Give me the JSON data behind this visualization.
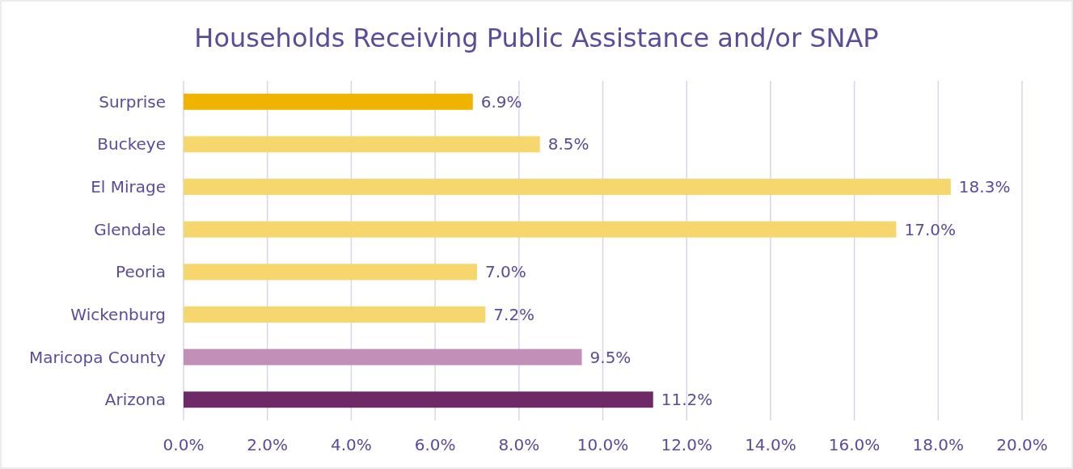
{
  "chart_data": {
    "type": "bar",
    "orientation": "horizontal",
    "title": "Households Receiving Public Assistance and/or SNAP",
    "categories": [
      "Surprise",
      "Buckeye",
      "El Mirage",
      "Glendale",
      "Peoria",
      "Wickenburg",
      "Maricopa County",
      "Arizona"
    ],
    "values": [
      6.9,
      8.5,
      18.3,
      17.0,
      7.0,
      7.2,
      9.5,
      11.2
    ],
    "colors": [
      "#f0b400",
      "#f5d76e",
      "#f5d76e",
      "#f5d76e",
      "#f5d76e",
      "#f5d76e",
      "#c28fb8",
      "#6e2a66"
    ],
    "value_labels": [
      "6.9%",
      "8.5%",
      "18.3%",
      "17.0%",
      "7.0%",
      "7.2%",
      "9.5%",
      "11.2%"
    ],
    "xlim": [
      0,
      20
    ],
    "xticks": [
      {
        "value": 0,
        "label": "0.0%"
      },
      {
        "value": 2,
        "label": "2.0%"
      },
      {
        "value": 4,
        "label": "4.0%"
      },
      {
        "value": 6,
        "label": "6.0%"
      },
      {
        "value": 8,
        "label": "8.0%"
      },
      {
        "value": 10,
        "label": "10.0%"
      },
      {
        "value": 12,
        "label": "12.0%"
      },
      {
        "value": 14,
        "label": "14.0%"
      },
      {
        "value": 16,
        "label": "16.0%"
      },
      {
        "value": 18,
        "label": "18.0%"
      },
      {
        "value": 20,
        "label": "20.0%"
      }
    ],
    "grid": "x"
  }
}
